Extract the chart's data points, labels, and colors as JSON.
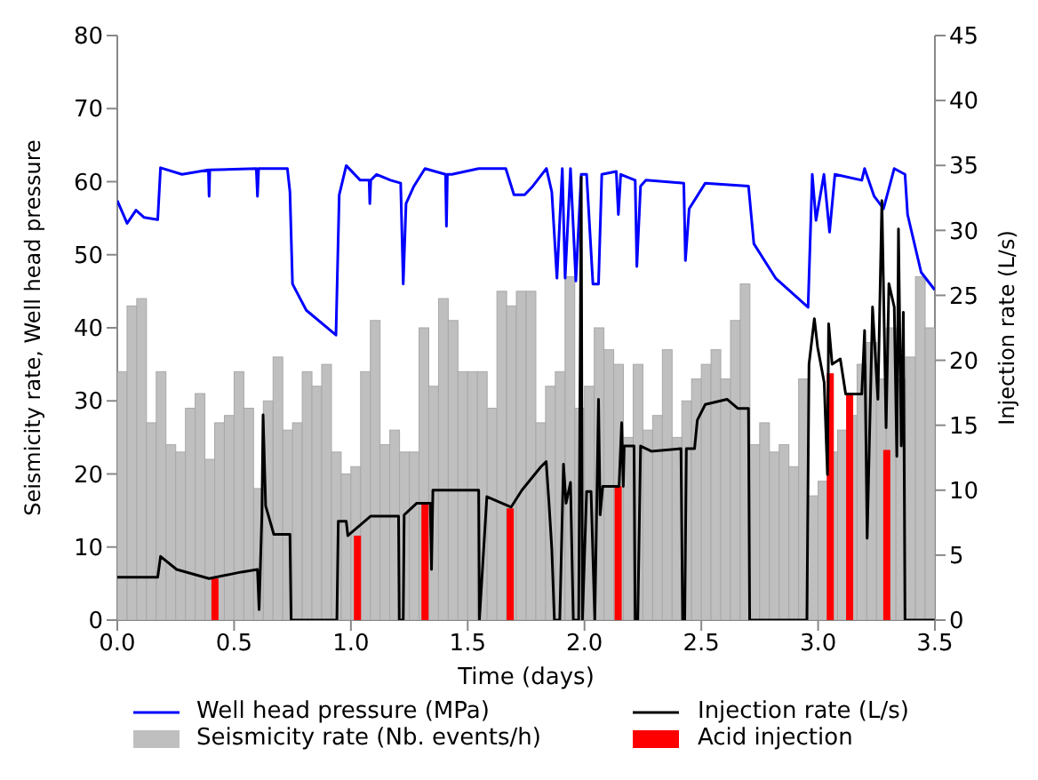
{
  "chart_data": {
    "type": "line",
    "xlabel": "Time (days)",
    "ylabel": "Seismicity rate, Well head pressure",
    "y2label": "Injection rate (L/s)",
    "xlim": [
      0,
      3.5
    ],
    "xticks": [
      {
        "value": 0,
        "label": "0.0"
      },
      {
        "value": 0.5,
        "label": "0.5"
      },
      {
        "value": 1,
        "label": "1.0"
      },
      {
        "value": 1.5,
        "label": "1.5"
      },
      {
        "value": 2,
        "label": "2.0"
      },
      {
        "value": 2.5,
        "label": "2.5"
      },
      {
        "value": 3,
        "label": "3.0"
      },
      {
        "value": 3.5,
        "label": "3.5"
      }
    ],
    "ylim": [
      0,
      80
    ],
    "yticks": [
      0,
      10,
      20,
      30,
      40,
      50,
      60,
      70,
      80
    ],
    "y2lim": [
      0,
      45
    ],
    "y2ticks": [
      0,
      5,
      10,
      15,
      20,
      25,
      30,
      35,
      40,
      45
    ],
    "legend": "bottom",
    "series": [
      {
        "name": "Seismicity rate (Nb. events/h)",
        "type": "histogram",
        "color": "#bfbfbf",
        "bins": [
          0,
          0.0417,
          0.0833,
          0.125,
          0.1667,
          0.2083,
          0.25,
          0.2917,
          0.3333,
          0.375,
          0.4167,
          0.4583,
          0.5,
          0.5417,
          0.5833,
          0.625,
          0.6667,
          0.7083,
          0.75,
          0.7917,
          0.8333,
          0.875,
          0.9167,
          0.9583,
          1,
          1.0417,
          1.0833,
          1.125,
          1.1667,
          1.2083,
          1.25,
          1.2917,
          1.3333,
          1.375,
          1.4167,
          1.4583,
          1.5,
          1.5417,
          1.5833,
          1.625,
          1.6667,
          1.7083,
          1.75,
          1.7917,
          1.8333,
          1.875,
          1.9167,
          1.9583,
          2,
          2.0417,
          2.0833,
          2.125,
          2.1667,
          2.2083,
          2.25,
          2.2917,
          2.3333,
          2.375,
          2.4167,
          2.4583,
          2.5,
          2.5417,
          2.5833,
          2.625,
          2.6667,
          2.7083,
          2.75,
          2.7917,
          2.8333,
          2.875,
          2.9167,
          2.9583,
          3,
          3.0417,
          3.0833,
          3.125,
          3.1667,
          3.2083,
          3.25,
          3.2917,
          3.3333,
          3.375,
          3.4167,
          3.4583,
          3.5
        ],
        "values": [
          34,
          43,
          44,
          27,
          34,
          24,
          23,
          29,
          31,
          22,
          27,
          28,
          34,
          29,
          18,
          30,
          36,
          26,
          27,
          34,
          32,
          35,
          23,
          20,
          21,
          34,
          41,
          24,
          26,
          23,
          23,
          40,
          32,
          44,
          41,
          34,
          34,
          34,
          29,
          45,
          43,
          45,
          45,
          27,
          32,
          34,
          47,
          29,
          32,
          40,
          37,
          35,
          25,
          35,
          26,
          28,
          37,
          25,
          30,
          33,
          35,
          37,
          33,
          41,
          46,
          24,
          27,
          23,
          24,
          21,
          33,
          17,
          19,
          23,
          26,
          28,
          35,
          38,
          33,
          40,
          33,
          36,
          47,
          40
        ]
      },
      {
        "name": "Acid injection",
        "type": "bar",
        "axis": "y2",
        "color": "#ff0000",
        "x": [
          0.418,
          1.028,
          1.317,
          1.682,
          2.144,
          3.052,
          3.135,
          3.294
        ],
        "values": [
          3.2,
          6.5,
          9.0,
          8.6,
          10.3,
          19,
          17.4,
          13.1
        ]
      },
      {
        "name": "Well head pressure (MPa)",
        "color": "#0000ff",
        "x": [
          0,
          0.042,
          0.08,
          0.115,
          0.173,
          0.185,
          0.277,
          0.39,
          0.393,
          0.396,
          0.595,
          0.6,
          0.605,
          0.728,
          0.739,
          0.75,
          0.809,
          0.936,
          0.95,
          0.98,
          1.04,
          1.078,
          1.081,
          1.085,
          1.11,
          1.17,
          1.213,
          1.224,
          1.236,
          1.27,
          1.317,
          1.405,
          1.409,
          1.413,
          1.432,
          1.547,
          1.663,
          1.698,
          1.744,
          1.779,
          1.837,
          1.86,
          1.882,
          1.905,
          1.917,
          1.94,
          1.963,
          1.986,
          2.009,
          2.036,
          2.06,
          2.074,
          2.136,
          2.145,
          2.155,
          2.217,
          2.224,
          2.24,
          2.263,
          2.425,
          2.432,
          2.448,
          2.517,
          2.702,
          2.725,
          2.818,
          2.957,
          2.975,
          2.991,
          3.025,
          3.049,
          3.072,
          3.187,
          3.199,
          3.24,
          3.28,
          3.326,
          3.372,
          3.383,
          3.441,
          3.499
        ],
        "values": [
          57.4,
          54.3,
          56.1,
          55.1,
          54.8,
          61.9,
          61,
          61.6,
          58,
          61.6,
          61.8,
          58,
          61.8,
          61.8,
          58.6,
          46,
          42.4,
          39,
          58.2,
          62.2,
          60.2,
          60.2,
          57,
          60.2,
          61,
          60.2,
          59.8,
          46,
          57,
          59.4,
          61.8,
          61,
          53.9,
          61,
          61,
          61.8,
          61.8,
          58.2,
          58.2,
          59.4,
          61.8,
          58.6,
          46.8,
          61.8,
          46.8,
          61.8,
          46.4,
          61,
          61,
          46,
          46,
          61,
          61.4,
          55.5,
          61,
          60.2,
          48.4,
          59.4,
          60.2,
          59.8,
          49.2,
          56.3,
          59.8,
          59.4,
          51.5,
          46.8,
          42.8,
          61,
          54.7,
          61,
          53.1,
          61,
          60.2,
          61.8,
          58,
          56.3,
          61.8,
          61,
          55.5,
          47.6,
          45.2
        ]
      },
      {
        "name": "Injection rate (L/s)",
        "axis": "y2",
        "color": "#000000",
        "x": [
          0,
          0.173,
          0.185,
          0.254,
          0.393,
          0.531,
          0.6,
          0.607,
          0.619,
          0.624,
          0.635,
          0.67,
          0.739,
          0.744,
          0.94,
          0.946,
          0.98,
          0.987,
          1.084,
          1.204,
          1.207,
          1.224,
          1.228,
          1.282,
          1.34,
          1.345,
          1.351,
          1.547,
          1.55,
          1.582,
          1.686,
          1.732,
          1.813,
          1.836,
          1.848,
          1.86,
          1.871,
          1.894,
          1.91,
          1.921,
          1.94,
          1.952,
          1.975,
          1.986,
          1.991,
          2.009,
          2.028,
          2.044,
          2.06,
          2.067,
          2.078,
          2.125,
          2.148,
          2.159,
          2.166,
          2.17,
          2.212,
          2.217,
          2.228,
          2.24,
          2.286,
          2.413,
          2.42,
          2.429,
          2.436,
          2.471,
          2.483,
          2.517,
          2.61,
          2.656,
          2.702,
          2.707,
          2.952,
          2.961,
          2.984,
          2.998,
          3.026,
          3.04,
          3.045,
          3.06,
          3.095,
          3.118,
          3.187,
          3.199,
          3.21,
          3.233,
          3.256,
          3.273,
          3.291,
          3.303,
          3.326,
          3.337,
          3.344,
          3.356,
          3.365,
          3.372,
          3.499
        ],
        "values": [
          3.3,
          3.3,
          4.9,
          3.9,
          3.2,
          3.7,
          3.9,
          0.8,
          8.1,
          15.8,
          8.8,
          6.6,
          6.6,
          0,
          0,
          7.6,
          7.6,
          6.5,
          8.0,
          8.0,
          0,
          0,
          8.1,
          9.0,
          9.0,
          3.9,
          10,
          10,
          0,
          9.5,
          8.7,
          10,
          11.8,
          12.2,
          9.0,
          5.5,
          0,
          0,
          12,
          9,
          10.6,
          0,
          0,
          34.1,
          0,
          9.9,
          9.9,
          0,
          17,
          8.1,
          10.3,
          10.3,
          10.3,
          15.2,
          10.3,
          13.4,
          13.4,
          0,
          0,
          13.4,
          13.0,
          13.2,
          0,
          0,
          13.2,
          13.2,
          15.4,
          16.6,
          17,
          16.3,
          16.3,
          0,
          0,
          19.7,
          23.2,
          21,
          18.3,
          11.2,
          22.8,
          19.7,
          20.1,
          17.4,
          17.4,
          22.3,
          6.3,
          24.1,
          17,
          32.3,
          14.8,
          25.9,
          24.1,
          12.6,
          30.1,
          13.4,
          23.7,
          0,
          0
        ]
      }
    ]
  }
}
